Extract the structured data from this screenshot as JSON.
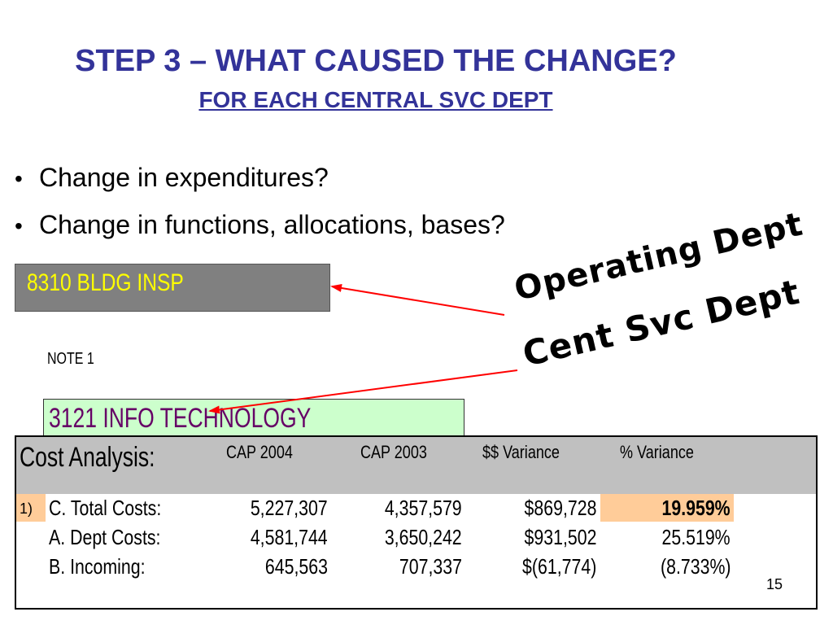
{
  "slide": {
    "title": "STEP 3 – WHAT CAUSED THE CHANGE?",
    "subtitle": "FOR EACH CENTRAL SVC DEPT",
    "bullet_char": "•",
    "bullets": [
      "Change in expenditures?",
      "Change in functions, allocations, bases?"
    ],
    "page_number": "15"
  },
  "operating_box": {
    "label": "8310 BLDG INSP"
  },
  "note": "NOTE 1",
  "central_box": {
    "label": "3121 INFO TECHNOLOGY"
  },
  "callouts": {
    "operating": "Operating Dept",
    "central": "Cent Svc Dept"
  },
  "table": {
    "header": "Cost Analysis:",
    "columns": [
      "CAP 2004",
      "CAP 2003",
      "$$   Variance",
      "%   Variance"
    ],
    "marker": "1)",
    "rows": [
      {
        "label": "C. Total Costs:",
        "cap2004": "5,227,307",
        "cap2003": "4,357,579",
        "var_dollars": "$869,728",
        "var_pct": "19.959%"
      },
      {
        "label": "A. Dept Costs:",
        "cap2004": "4,581,744",
        "cap2003": "3,650,242",
        "var_dollars": "$931,502",
        "var_pct": "25.519%"
      },
      {
        "label": "B. Incoming:",
        "cap2004": "645,563",
        "cap2003": "707,337",
        "var_dollars": "$(61,774)",
        "var_pct": "(8.733%)"
      }
    ]
  },
  "colors": {
    "title": "#333399",
    "operating_box_bg": "#808080",
    "operating_box_text": "#ffff00",
    "central_box_bg": "#ccffcc",
    "central_box_text": "#660066",
    "table_header_bg": "#c0c0c0",
    "highlight": "#ffcc99",
    "arrow": "#ff0000"
  }
}
